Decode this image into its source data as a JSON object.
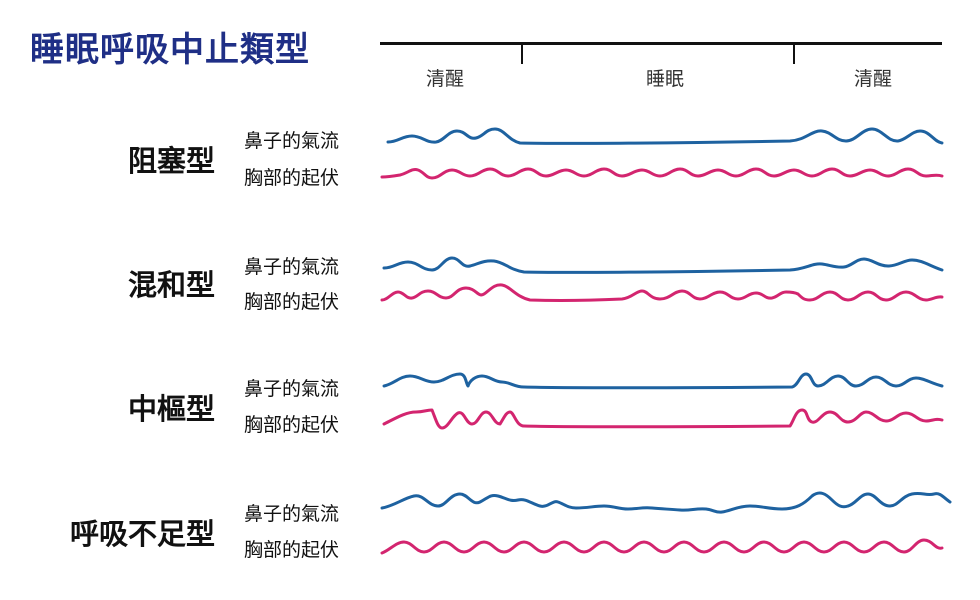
{
  "title": "睡眠呼吸中止類型",
  "phases": [
    "清醒",
    "睡眠",
    "清醒"
  ],
  "signal_labels": {
    "airflow": "鼻子的氣流",
    "chest": "胸部的起伏"
  },
  "types": [
    {
      "name": "阻塞型"
    },
    {
      "name": "混和型"
    },
    {
      "name": "中樞型"
    },
    {
      "name": "呼吸不足型"
    }
  ],
  "colors": {
    "title": "#1f2f86",
    "airflow": "#1e62a0",
    "chest": "#d3256f",
    "text": "#111111"
  }
}
